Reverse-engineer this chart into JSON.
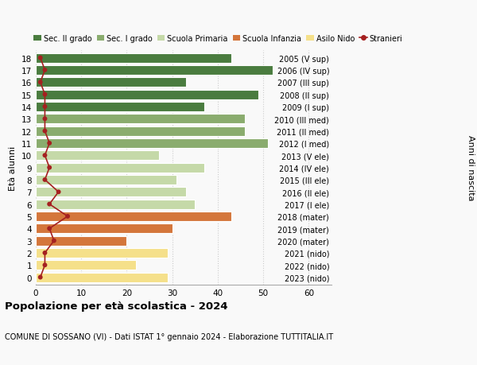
{
  "ages": [
    18,
    17,
    16,
    15,
    14,
    13,
    12,
    11,
    10,
    9,
    8,
    7,
    6,
    5,
    4,
    3,
    2,
    1,
    0
  ],
  "right_labels": [
    "2005 (V sup)",
    "2006 (IV sup)",
    "2007 (III sup)",
    "2008 (II sup)",
    "2009 (I sup)",
    "2010 (III med)",
    "2011 (II med)",
    "2012 (I med)",
    "2013 (V ele)",
    "2014 (IV ele)",
    "2015 (III ele)",
    "2016 (II ele)",
    "2017 (I ele)",
    "2018 (mater)",
    "2019 (mater)",
    "2020 (mater)",
    "2021 (nido)",
    "2022 (nido)",
    "2023 (nido)"
  ],
  "bar_values": [
    43,
    52,
    33,
    49,
    37,
    46,
    46,
    51,
    27,
    37,
    31,
    33,
    35,
    43,
    30,
    20,
    29,
    22,
    29
  ],
  "stranieri_values": [
    1,
    2,
    1,
    2,
    2,
    2,
    2,
    3,
    2,
    3,
    2,
    5,
    3,
    7,
    3,
    4,
    2,
    2,
    1
  ],
  "colors": {
    "sec2": "#4a7c3f",
    "sec1": "#8aac6e",
    "primaria": "#c5d9a8",
    "infanzia": "#d4763b",
    "nido": "#f5e08a",
    "stranieri": "#a52020"
  },
  "category_colors": {
    "18": "#4a7c3f",
    "17": "#4a7c3f",
    "16": "#4a7c3f",
    "15": "#4a7c3f",
    "14": "#4a7c3f",
    "13": "#8aac6e",
    "12": "#8aac6e",
    "11": "#8aac6e",
    "10": "#c5d9a8",
    "9": "#c5d9a8",
    "8": "#c5d9a8",
    "7": "#c5d9a8",
    "6": "#c5d9a8",
    "5": "#d4763b",
    "4": "#d4763b",
    "3": "#d4763b",
    "2": "#f5e08a",
    "1": "#f5e08a",
    "0": "#f5e08a"
  },
  "xlim": [
    0,
    65
  ],
  "title": "Popolazione per età scolastica - 2024",
  "subtitle": "COMUNE DI SOSSANO (VI) - Dati ISTAT 1° gennaio 2024 - Elaborazione TUTTITALIA.IT",
  "ylabel": "Età alunni",
  "ylabel_right": "Anni di nascita",
  "legend_labels": [
    "Sec. II grado",
    "Sec. I grado",
    "Scuola Primaria",
    "Scuola Infanzia",
    "Asilo Nido",
    "Stranieri"
  ],
  "legend_colors": [
    "#4a7c3f",
    "#8aac6e",
    "#c5d9a8",
    "#d4763b",
    "#f5e08a",
    "#a52020"
  ],
  "bg_color": "#f9f9f9"
}
